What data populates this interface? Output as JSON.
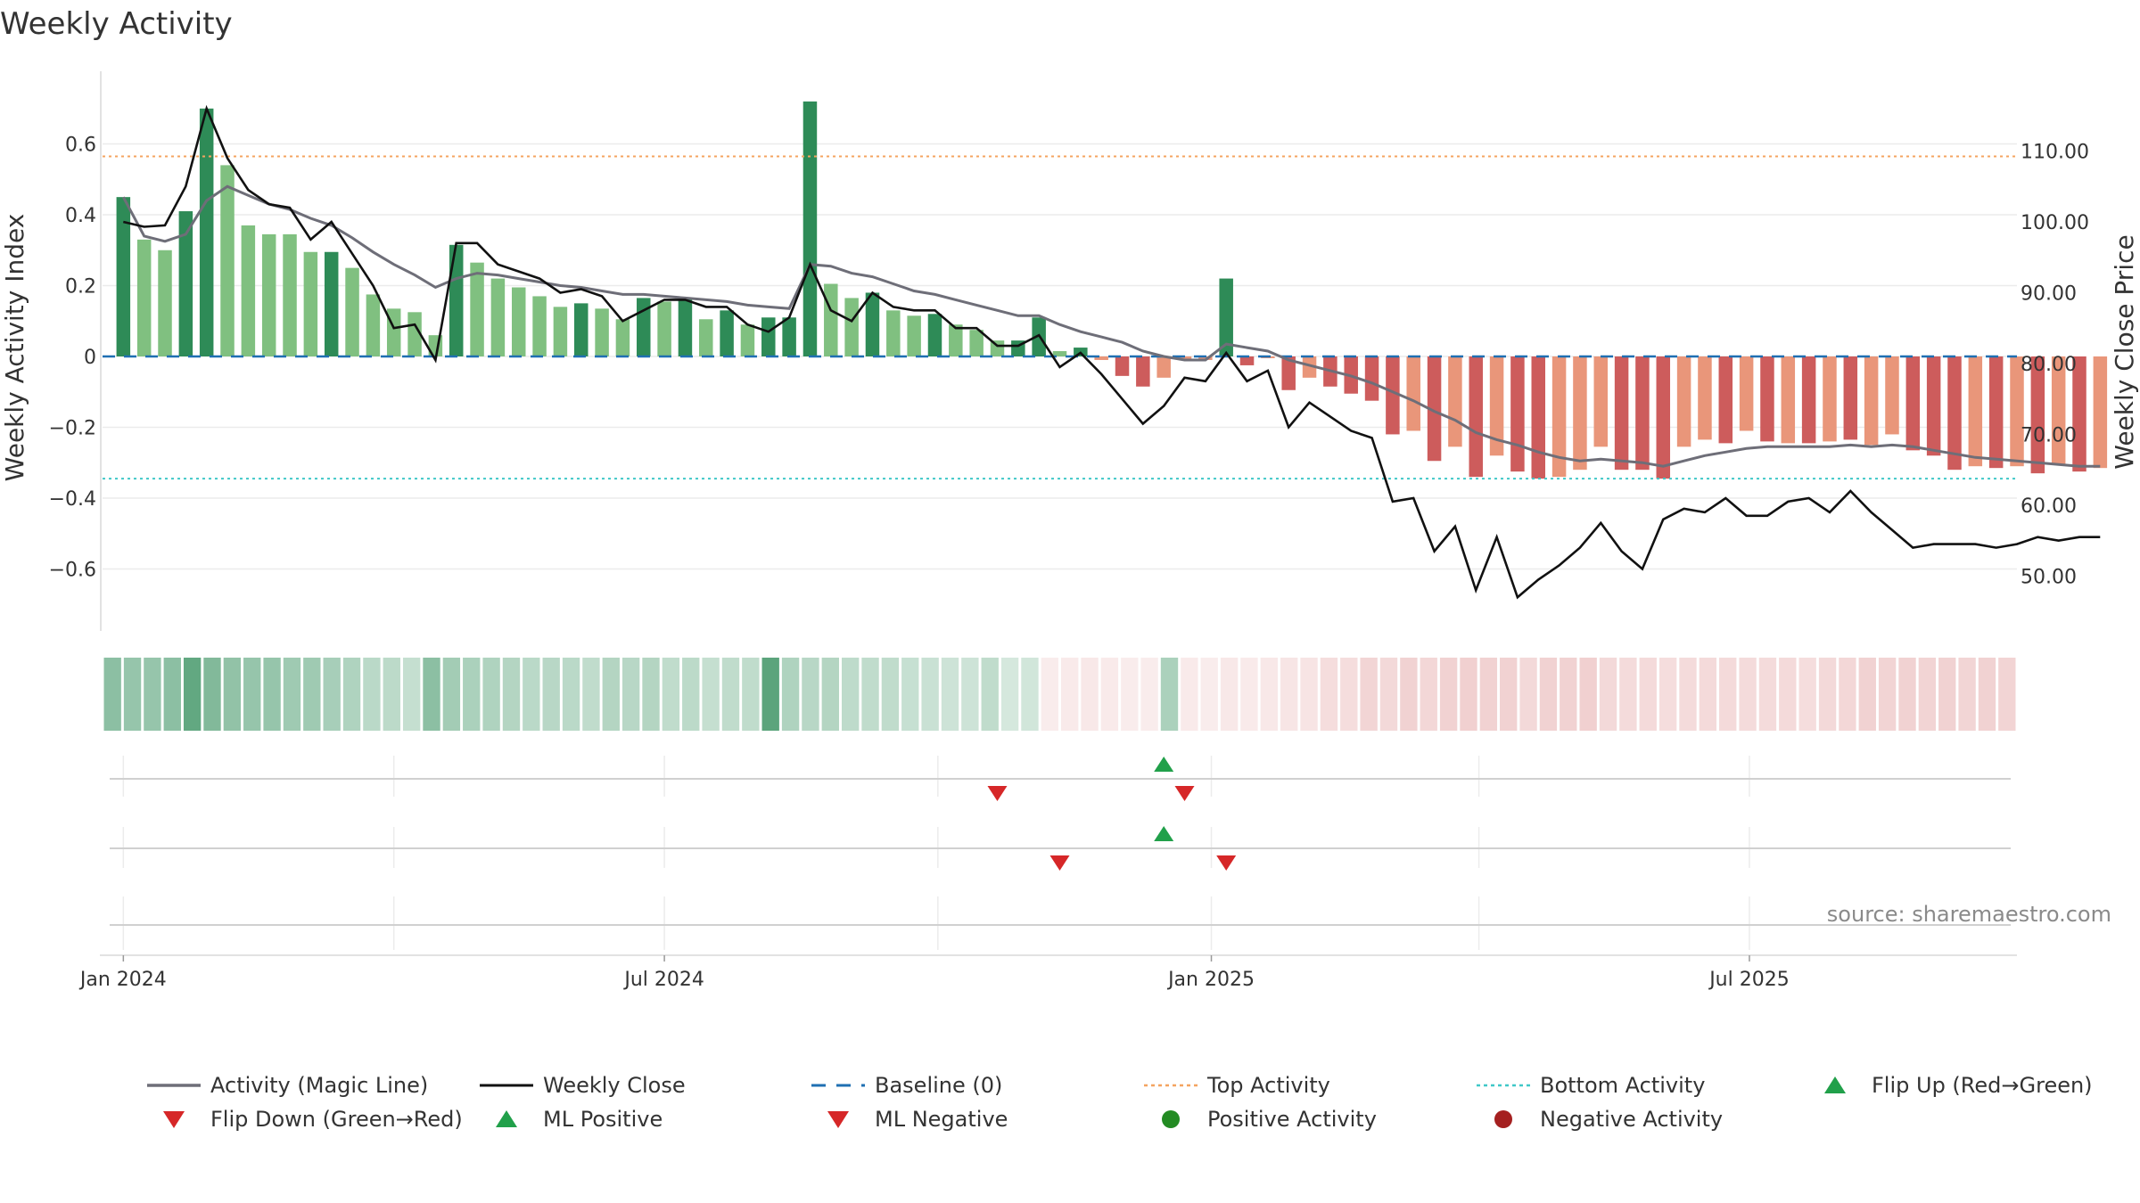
{
  "chart_data": {
    "type": "bar+line",
    "title": "Weekly Activity",
    "ylabel_left": "Weekly Activity Index",
    "ylabel_right": "Weekly Close Price",
    "ylim_left": [
      -0.78,
      0.78
    ],
    "ylim_right": [
      42.0,
      120.0
    ],
    "yticks_left": [
      0.6,
      0.4,
      0.2,
      0,
      -0.2,
      -0.4,
      -0.6
    ],
    "ytick_labels_left": [
      "0.6",
      "0.4",
      "0.2",
      "0",
      "−0.2",
      "−0.4",
      "−0.6"
    ],
    "yticks_right": [
      110,
      100,
      90,
      80,
      70,
      60,
      50
    ],
    "ytick_labels_right": [
      "110.00",
      "100.00",
      "90.00",
      "80.00",
      "70.00",
      "60.00",
      "50.00"
    ],
    "x_start": "2023-12-25",
    "x_end": "2025-09-29",
    "xticks": [
      {
        "date": "2024-01-01",
        "label": "Jan 2024"
      },
      {
        "date": "2024-07-01",
        "label": "Jul 2024"
      },
      {
        "date": "2025-01-01",
        "label": "Jan 2025"
      },
      {
        "date": "2025-07-01",
        "label": "Jul 2025"
      }
    ],
    "minor_ticks": [
      "2024-01-01",
      "2024-04-01",
      "2024-07-01",
      "2024-10-01",
      "2025-01-01",
      "2025-04-01",
      "2025-07-01"
    ],
    "top_activity": 0.565,
    "bottom_activity": -0.345,
    "baseline": 0,
    "activity": [
      0.45,
      0.33,
      0.3,
      0.41,
      0.7,
      0.54,
      0.37,
      0.345,
      0.345,
      0.295,
      0.295,
      0.25,
      0.175,
      0.135,
      0.125,
      0.06,
      0.315,
      0.265,
      0.22,
      0.195,
      0.17,
      0.14,
      0.15,
      0.135,
      0.105,
      0.165,
      0.155,
      0.165,
      0.105,
      0.13,
      0.09,
      0.11,
      0.11,
      0.72,
      0.205,
      0.165,
      0.18,
      0.13,
      0.115,
      0.12,
      0.09,
      0.075,
      0.045,
      0.045,
      0.11,
      0.015,
      0.025,
      -0.01,
      -0.055,
      -0.085,
      -0.06,
      -0.01,
      -0.01,
      0.22,
      -0.025,
      -0.005,
      -0.095,
      -0.06,
      -0.085,
      -0.105,
      -0.125,
      -0.22,
      -0.21,
      -0.295,
      -0.255,
      -0.34,
      -0.28,
      -0.325,
      -0.345,
      -0.34,
      -0.32,
      -0.255,
      -0.32,
      -0.32,
      -0.345,
      -0.255,
      -0.235,
      -0.245,
      -0.21,
      -0.24,
      -0.245,
      -0.245,
      -0.24,
      -0.235,
      -0.25,
      -0.22,
      -0.265,
      -0.28,
      -0.32,
      -0.31,
      -0.315,
      -0.31,
      -0.33,
      -0.305,
      -0.325,
      -0.315
    ],
    "magic_line": [
      0.45,
      0.34,
      0.325,
      0.345,
      0.44,
      0.48,
      0.455,
      0.43,
      0.415,
      0.39,
      0.37,
      0.335,
      0.295,
      0.26,
      0.23,
      0.195,
      0.22,
      0.235,
      0.23,
      0.22,
      0.21,
      0.2,
      0.195,
      0.185,
      0.175,
      0.175,
      0.17,
      0.165,
      0.16,
      0.155,
      0.145,
      0.14,
      0.135,
      0.26,
      0.255,
      0.235,
      0.225,
      0.205,
      0.185,
      0.175,
      0.16,
      0.145,
      0.13,
      0.115,
      0.115,
      0.09,
      0.07,
      0.055,
      0.04,
      0.015,
      0.0,
      -0.01,
      -0.01,
      0.035,
      0.025,
      0.015,
      -0.01,
      -0.025,
      -0.04,
      -0.055,
      -0.075,
      -0.1,
      -0.125,
      -0.155,
      -0.18,
      -0.215,
      -0.235,
      -0.25,
      -0.27,
      -0.285,
      -0.295,
      -0.29,
      -0.295,
      -0.3,
      -0.31,
      -0.295,
      -0.28,
      -0.27,
      -0.26,
      -0.255,
      -0.255,
      -0.255,
      -0.255,
      -0.25,
      -0.255,
      -0.25,
      -0.255,
      -0.265,
      -0.275,
      -0.285,
      -0.29,
      -0.295,
      -0.3,
      -0.305,
      -0.31,
      -0.31
    ],
    "weekly_close": [
      100.0,
      99.3,
      99.5,
      105.0,
      116.0,
      109.0,
      104.5,
      102.5,
      102.0,
      97.5,
      100.0,
      95.5,
      91.0,
      85.0,
      85.5,
      80.5,
      97.0,
      97.0,
      94.0,
      93.0,
      92.0,
      90.0,
      90.5,
      89.5,
      86.0,
      87.5,
      89.0,
      89.0,
      88.0,
      88.0,
      85.5,
      84.5,
      86.5,
      94.0,
      87.5,
      86.0,
      90.0,
      88.0,
      87.5,
      87.5,
      85.0,
      85.0,
      82.5,
      82.5,
      84.0,
      79.5,
      81.5,
      78.5,
      75.0,
      71.5,
      74.0,
      78.0,
      77.5,
      81.5,
      77.5,
      79.0,
      71.0,
      74.5,
      72.5,
      70.5,
      69.5,
      60.5,
      61.0,
      53.5,
      57.0,
      48.0,
      55.5,
      47.0,
      49.5,
      51.5,
      54.0,
      57.5,
      53.5,
      51.0,
      58.0,
      59.5,
      59.0,
      61.0,
      58.5,
      58.5,
      60.5,
      61.0,
      59.0,
      62.0,
      59.0,
      56.5,
      54.0,
      54.5,
      54.5,
      54.5,
      54.0,
      54.5,
      55.5,
      55.0,
      55.5,
      55.5
    ],
    "tiers": [
      3,
      2,
      2,
      3,
      3,
      2,
      2,
      2,
      2,
      2,
      3,
      2,
      2,
      2,
      2,
      2,
      3,
      2,
      2,
      2,
      2,
      2,
      3,
      2,
      2,
      3,
      2,
      3,
      2,
      3,
      2,
      3,
      3,
      3,
      2,
      2,
      3,
      2,
      2,
      3,
      2,
      2,
      2,
      3,
      3,
      2,
      3,
      2,
      3,
      3,
      2,
      2,
      2,
      3,
      3,
      2,
      3,
      2,
      3,
      3,
      3,
      3,
      2,
      3,
      2,
      3,
      2,
      3,
      3,
      2,
      2,
      2,
      3,
      3,
      3,
      2,
      2,
      3,
      2,
      3,
      2,
      3,
      2,
      3,
      2,
      2,
      3,
      3,
      3,
      2,
      3,
      2,
      3,
      2,
      3,
      2
    ],
    "heat_strip": [
      0.55,
      0.5,
      0.5,
      0.55,
      0.75,
      0.6,
      0.52,
      0.5,
      0.5,
      0.46,
      0.46,
      0.42,
      0.38,
      0.33,
      0.32,
      0.28,
      0.55,
      0.44,
      0.4,
      0.38,
      0.36,
      0.33,
      0.34,
      0.33,
      0.3,
      0.36,
      0.34,
      0.36,
      0.3,
      0.32,
      0.28,
      0.3,
      0.3,
      0.78,
      0.38,
      0.34,
      0.36,
      0.31,
      0.3,
      0.3,
      0.27,
      0.26,
      0.24,
      0.24,
      0.3,
      0.2,
      0.22,
      0.18,
      0.2,
      0.22,
      0.2,
      0.18,
      0.18,
      0.4,
      0.2,
      0.18,
      0.22,
      0.2,
      0.22,
      0.24,
      0.26,
      0.32,
      0.32,
      0.4,
      0.36,
      0.42,
      0.38,
      0.42,
      0.44,
      0.42,
      0.42,
      0.36,
      0.42,
      0.42,
      0.44,
      0.36,
      0.34,
      0.35,
      0.32,
      0.34,
      0.35,
      0.35,
      0.34,
      0.34,
      0.35,
      0.32,
      0.36,
      0.38,
      0.42,
      0.41,
      0.42,
      0.41,
      0.42,
      0.4,
      0.42,
      0.41
    ],
    "flip_up": [
      "2024-12-16"
    ],
    "flip_down": [
      "2024-10-21",
      "2024-12-23"
    ],
    "ml_positive": [
      "2024-12-16"
    ],
    "ml_negative": [
      "2024-11-11",
      "2025-01-06"
    ],
    "colors": {
      "pos_dark": "#2e8b57",
      "pos_light": "#80c080",
      "neg_dark": "#cd5c5c",
      "neg_light": "#e9967a",
      "magic_line": "#6e6e78",
      "close": "#111111",
      "baseline": "#1f6fb2",
      "top": "#f4a460",
      "bottom": "#40c8c8",
      "marker_green": "#21a04a",
      "marker_red": "#d62728",
      "pos_dot": "#238b23",
      "neg_dot": "#a52020"
    },
    "legend": [
      {
        "key": "magic",
        "label": "Activity (Magic Line)"
      },
      {
        "key": "close",
        "label": "Weekly Close"
      },
      {
        "key": "baseline",
        "label": "Baseline (0)"
      },
      {
        "key": "top",
        "label": "Top Activity"
      },
      {
        "key": "bottom",
        "label": "Bottom Activity"
      },
      {
        "key": "flipup",
        "label": "Flip Up (Red→Green)"
      },
      {
        "key": "flipdown",
        "label": "Flip Down (Green→Red)"
      },
      {
        "key": "mlpos",
        "label": "ML Positive"
      },
      {
        "key": "mlneg",
        "label": "ML Negative"
      },
      {
        "key": "posact",
        "label": "Positive Activity"
      },
      {
        "key": "negact",
        "label": "Negative Activity"
      }
    ],
    "source": "source: sharemaestro.com"
  }
}
